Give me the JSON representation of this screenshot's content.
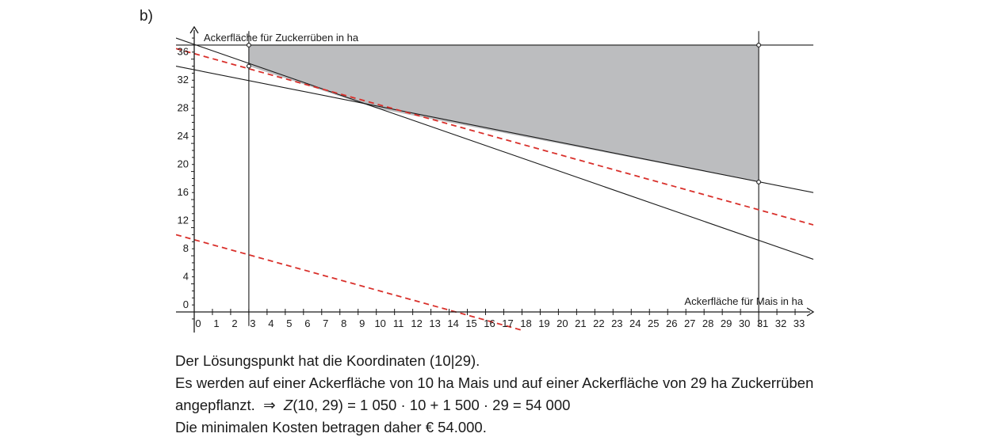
{
  "task_label": "b)",
  "chart_data": {
    "type": "line",
    "x_axis_label": "Ackerfläche für Mais in ha",
    "y_axis_label": "Ackerfläche für Zuckerrüben in ha",
    "x_ticks": [
      0,
      1,
      2,
      3,
      4,
      5,
      6,
      7,
      8,
      9,
      10,
      11,
      12,
      13,
      14,
      15,
      16,
      17,
      18,
      19,
      20,
      21,
      22,
      23,
      24,
      25,
      26,
      27,
      28,
      29,
      30,
      31,
      32,
      33
    ],
    "y_ticks": [
      0,
      4,
      8,
      12,
      16,
      20,
      24,
      28,
      32,
      36
    ],
    "xlim": [
      -1,
      34
    ],
    "ylim": [
      -2,
      40
    ],
    "feasible_region": {
      "vertices": [
        [
          3,
          38
        ],
        [
          31,
          38
        ],
        [
          31,
          18.5
        ],
        [
          10,
          29
        ],
        [
          3,
          35
        ]
      ],
      "fill_color": "#bcbdbf"
    },
    "constraint_lines": [
      {
        "kind": "line",
        "points": [
          [
            -1,
            39
          ],
          [
            34,
            7.5
          ]
        ]
      },
      {
        "kind": "line",
        "points": [
          [
            -1,
            35
          ],
          [
            34,
            17
          ]
        ]
      },
      {
        "kind": "horizontal",
        "y": 38
      },
      {
        "kind": "vertical",
        "x": 3
      },
      {
        "kind": "vertical",
        "x": 31
      }
    ],
    "objective_lines": [
      {
        "points": [
          [
            -1,
            37.5
          ],
          [
            34,
            12.4
          ]
        ],
        "color": "#d9302b",
        "dash": true
      },
      {
        "points": [
          [
            -1,
            11
          ],
          [
            18,
            -2.6
          ]
        ],
        "color": "#d9302b",
        "dash": true
      }
    ],
    "marked_points": [
      [
        3,
        38
      ],
      [
        31,
        38
      ],
      [
        3,
        35
      ],
      [
        31,
        18.5
      ]
    ]
  },
  "solution": {
    "line1": "Der Lösungspunkt hat die Koordinaten (10|29).",
    "line2": "Es werden auf einer Ackerfläche von 10 ha Mais und auf einer Ackerfläche von 29 ha Zuckerrüben",
    "line3_prefix": "angepflanzt.",
    "line3_arrow": "⇒",
    "line3_z": "Z",
    "line3_expr": "(10, 29) = 1 050 · 10 + 1 500 · 29 = 54 000",
    "line4": "Die minimalen Kosten betragen daher € 54.000."
  }
}
